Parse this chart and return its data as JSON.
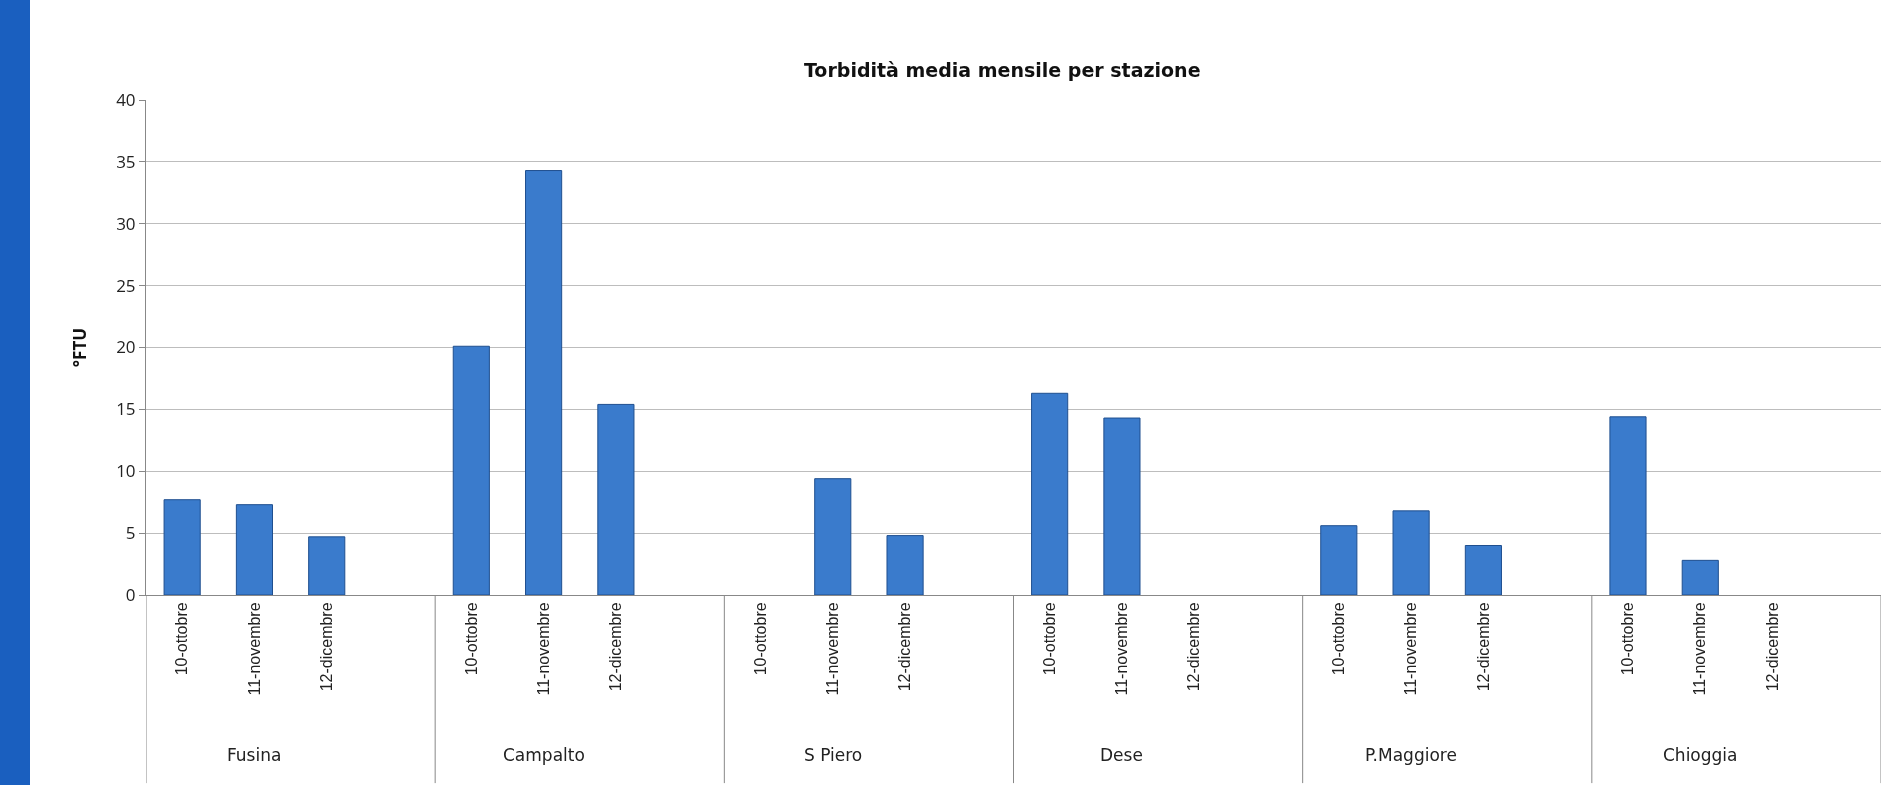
{
  "chart_data": {
    "type": "bar",
    "title": "Torbidità media mensile per stazione",
    "ylabel": "°FTU",
    "categories": [
      "10-ottobre",
      "11-novembre",
      "12-dicembre",
      null,
      "10-ottobre",
      "11-novembre",
      "12-dicembre",
      null,
      "10-ottobre",
      "11-novembre",
      "12-dicembre",
      null,
      "10-ottobre",
      "11-novembre",
      "12-dicembre",
      null,
      "10-ottobre",
      "11-novembre",
      "12-dicembre",
      null,
      "10-ottobre",
      "11-novembre",
      "12-dicembre",
      null
    ],
    "values": [
      7.7,
      7.3,
      4.7,
      null,
      20.1,
      34.3,
      15.4,
      null,
      null,
      9.4,
      4.8,
      null,
      16.3,
      14.3,
      null,
      null,
      5.6,
      6.8,
      4.0,
      null,
      14.4,
      2.8,
      null,
      null
    ],
    "color": "#3a7bcc",
    "annotations": [
      "Fusina",
      "Campalto",
      "S Piero",
      "Dese",
      "P.Maggiore",
      "Chioggia"
    ],
    "ylim": [
      0,
      40
    ],
    "yticks": [
      0,
      5,
      10,
      15,
      20,
      25,
      30,
      35,
      40
    ],
    "grid": "y",
    "legend": false
  }
}
